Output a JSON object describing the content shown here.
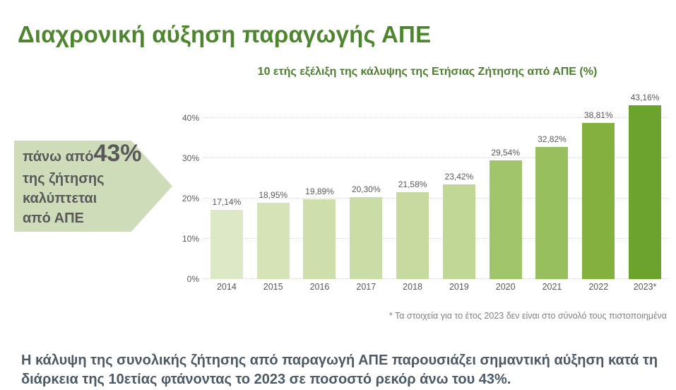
{
  "header": {
    "title": "Διαχρονική αύξηση παραγωγής ΑΠΕ"
  },
  "callout": {
    "prefix": "πάνω από ",
    "highlight": "43%",
    "line2": "της ζήτησης",
    "line3": "καλύπτεται",
    "line4": "από ΑΠΕ"
  },
  "chart_data": {
    "type": "bar",
    "title": "10 ετής εξέλιξη της κάλυψης της Ετήσιας Ζήτησης από ΑΠΕ (%)",
    "categories": [
      "2014",
      "2015",
      "2016",
      "2017",
      "2018",
      "2019",
      "2020",
      "2021",
      "2022",
      "2023*"
    ],
    "values": [
      17.14,
      18.95,
      19.89,
      20.3,
      21.58,
      23.42,
      29.54,
      32.82,
      38.81,
      43.16
    ],
    "value_labels": [
      "17,14%",
      "18,95%",
      "19,89%",
      "20,30%",
      "21,58%",
      "23,42%",
      "29,54%",
      "32,82%",
      "38,81%",
      "43,16%"
    ],
    "bar_colors": [
      "#dde9c6",
      "#d5e3b7",
      "#cfdfac",
      "#cbdda6",
      "#c7da9f",
      "#c1d795",
      "#a1c56b",
      "#98bf5e",
      "#83b13e",
      "#6ba32d"
    ],
    "xlabel": "",
    "ylabel": "",
    "ylim": [
      0,
      44
    ],
    "y_tick_values": [
      0,
      10,
      20,
      30,
      40
    ],
    "y_tick_labels": [
      "0%",
      "10%",
      "20%",
      "30%",
      "40%"
    ],
    "grid": "horizontal-dotted",
    "legend": "none",
    "footnote": "* Τα στοιχεία για το έτος 2023 δεν είναι στο σύνολό τους πιστοποιημένα"
  },
  "summary": {
    "text": "Η κάλυψη της συνολικής ζήτησης από παραγωγή ΑΠΕ παρουσιάζει σημαντική αύξηση κατά τη διάρκεια της 10ετίας φτάνοντας το 2023 σε ποσοστό ρεκόρ άνω του 43%."
  },
  "colors": {
    "title_green": "#4e8630",
    "chart_title_green": "#4e7e31",
    "axis_text": "#595959",
    "data_label_text": "#595959",
    "footnote_gray": "#7f7f7f",
    "summary_slate": "#4d5a66",
    "callout_bg": "#cedcba",
    "callout_text": "#595959",
    "gridline": "#d6d6d6"
  }
}
